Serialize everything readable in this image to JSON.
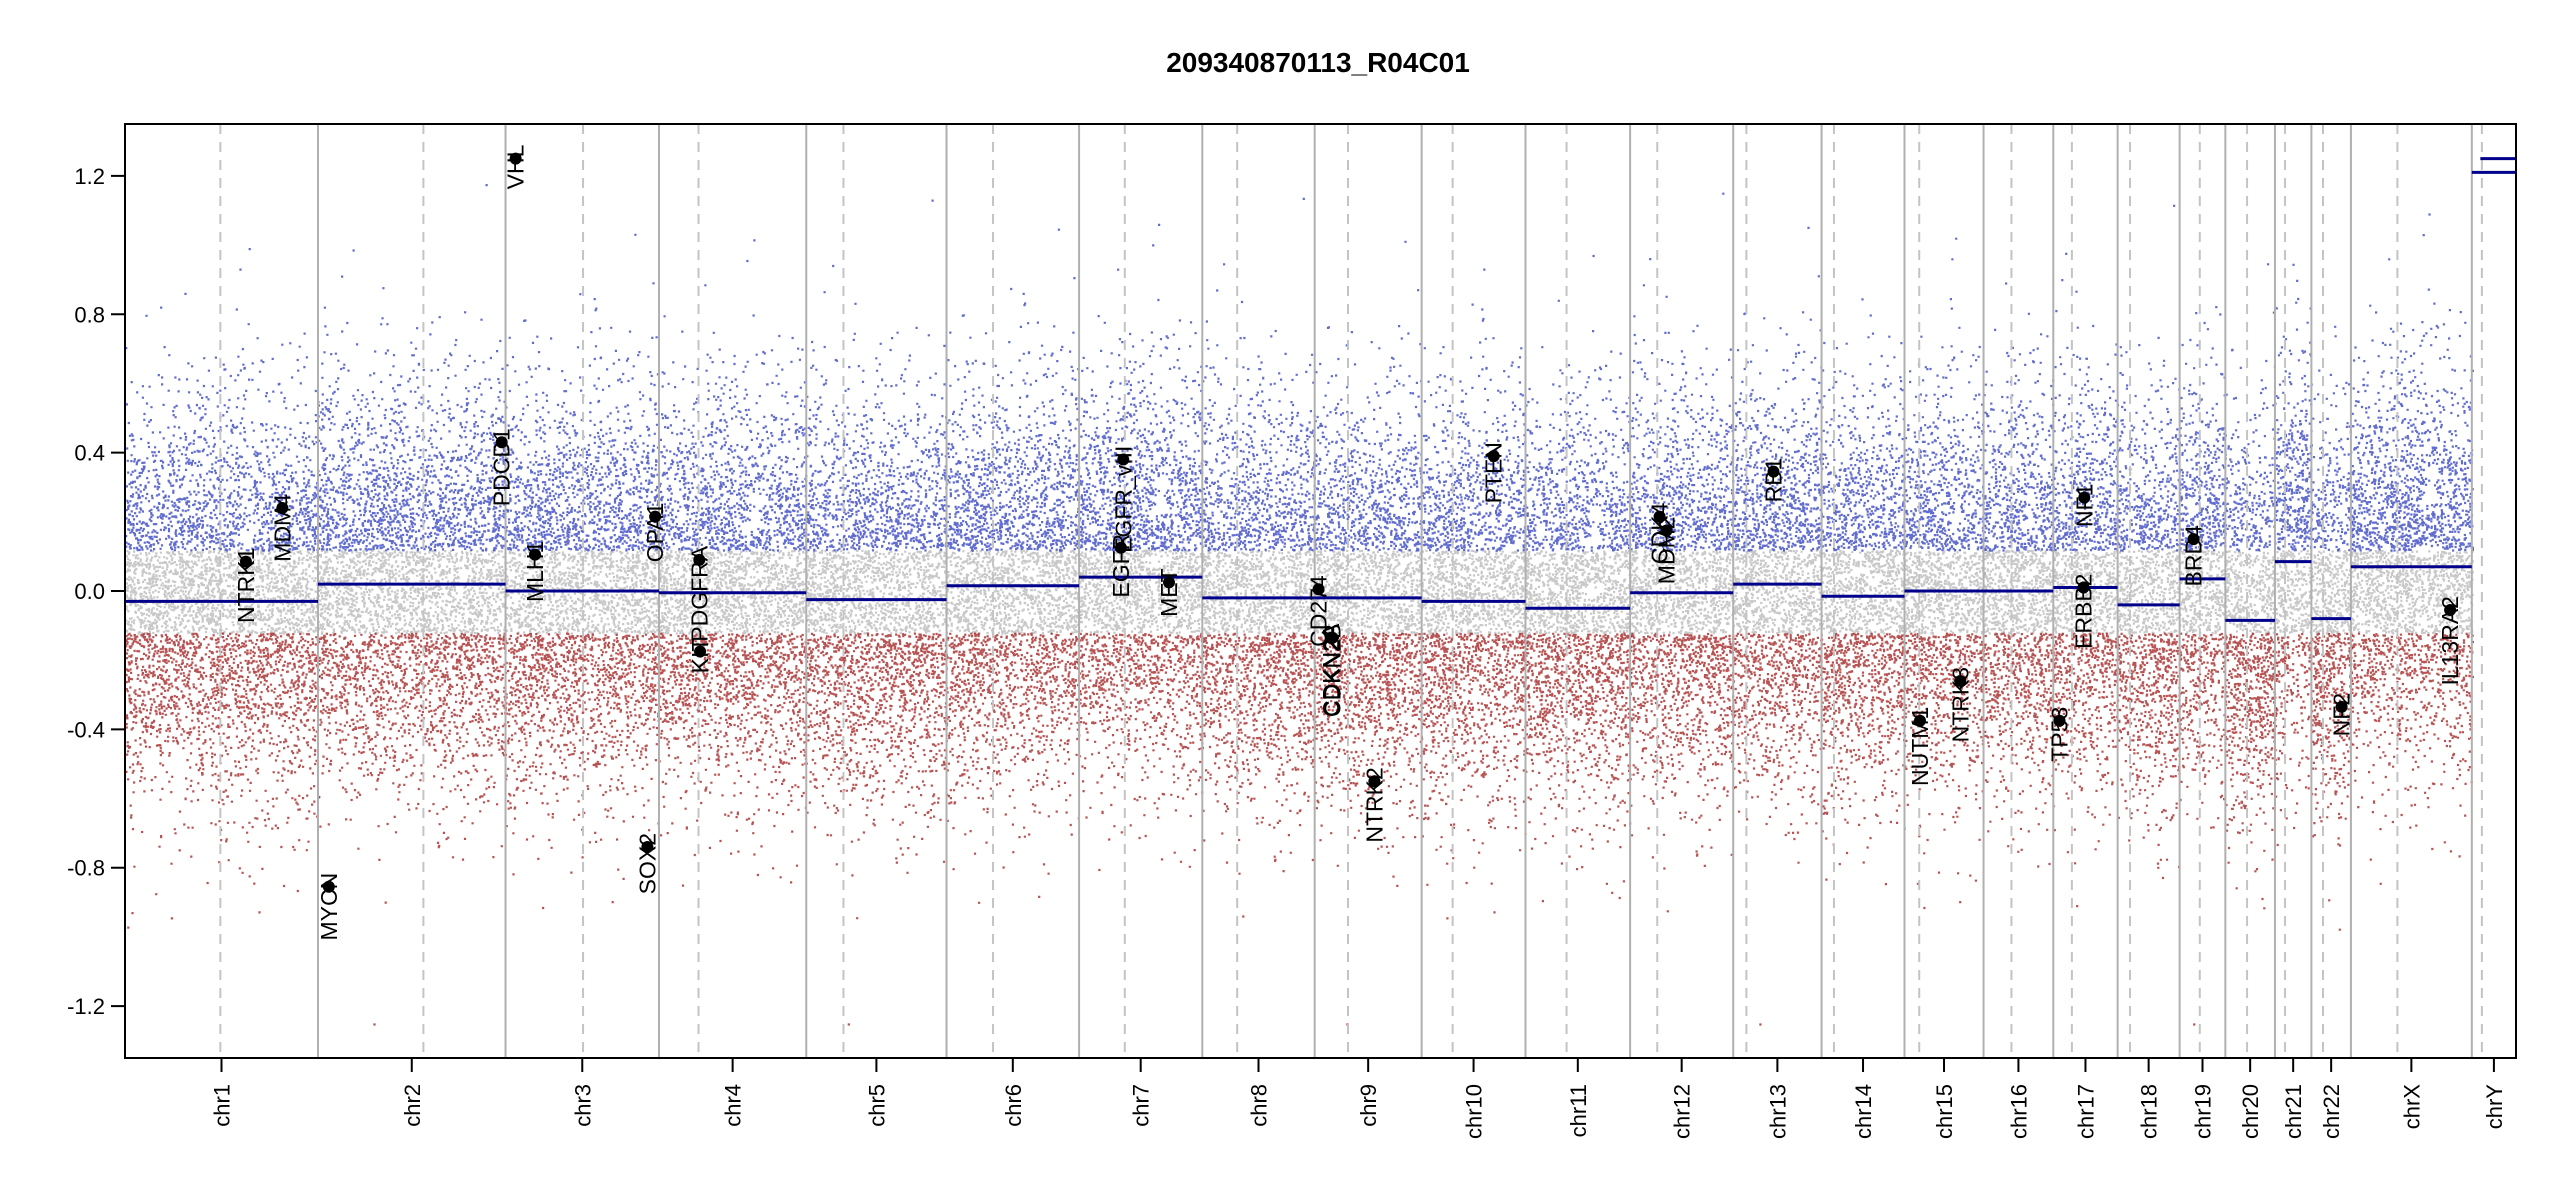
{
  "chart_data": {
    "type": "scatter",
    "title": "209340870113_R04C01",
    "ylim": [
      -1.35,
      1.35
    ],
    "yticks": [
      -1.2,
      -0.8,
      -0.4,
      0.0,
      0.4,
      0.8,
      1.2
    ],
    "ytick_labels": [
      "-1.2",
      "-0.8",
      "-0.4",
      "0.0",
      "0.4",
      "0.8",
      "1.2"
    ],
    "grid": false,
    "point_colors": {
      "gain": "#2b3bbd",
      "loss": "#a01a1a",
      "neutral": "#9a9a9a"
    },
    "segment_color": "#00008b",
    "chromosomes": [
      {
        "name": "chr1",
        "start": 0,
        "end": 2490,
        "centromere": 1230,
        "segment": -0.03
      },
      {
        "name": "chr2",
        "start": 2490,
        "end": 4910,
        "centromere": 3850,
        "segment": 0.02
      },
      {
        "name": "chr3",
        "start": 4910,
        "end": 6890,
        "centromere": 5910,
        "segment": 0.0
      },
      {
        "name": "chr4",
        "start": 6890,
        "end": 8790,
        "centromere": 7400,
        "segment": -0.005
      },
      {
        "name": "chr5",
        "start": 8790,
        "end": 10600,
        "centromere": 9270,
        "segment": -0.025
      },
      {
        "name": "chr6",
        "start": 10600,
        "end": 12310,
        "centromere": 11200,
        "segment": 0.015
      },
      {
        "name": "chr7",
        "start": 12310,
        "end": 13900,
        "centromere": 12900,
        "segment": 0.04
      },
      {
        "name": "chr8",
        "start": 13900,
        "end": 15350,
        "centromere": 14350,
        "segment": -0.02
      },
      {
        "name": "chr9",
        "start": 15350,
        "end": 16730,
        "centromere": 15780,
        "segment": -0.02
      },
      {
        "name": "chr10",
        "start": 16730,
        "end": 18070,
        "centromere": 17130,
        "segment": -0.03
      },
      {
        "name": "chr11",
        "start": 18070,
        "end": 19420,
        "centromere": 18600,
        "segment": -0.05
      },
      {
        "name": "chr12",
        "start": 19420,
        "end": 20750,
        "centromere": 19770,
        "segment": -0.005
      },
      {
        "name": "chr13",
        "start": 20750,
        "end": 21890,
        "centromere": 20920,
        "segment": 0.02
      },
      {
        "name": "chr14",
        "start": 21890,
        "end": 22960,
        "centromere": 22050,
        "segment": -0.015
      },
      {
        "name": "chr15",
        "start": 22960,
        "end": 23980,
        "centromere": 23150,
        "segment": 0.0
      },
      {
        "name": "chr16",
        "start": 23980,
        "end": 24880,
        "centromere": 24340,
        "segment": 0.0
      },
      {
        "name": "chr17",
        "start": 24880,
        "end": 25710,
        "centromere": 25120,
        "segment": 0.01
      },
      {
        "name": "chr18",
        "start": 25710,
        "end": 26510,
        "centromere": 25870,
        "segment": -0.04
      },
      {
        "name": "chr19",
        "start": 26510,
        "end": 27100,
        "centromere": 26770,
        "segment": 0.035
      },
      {
        "name": "chr20",
        "start": 27100,
        "end": 27740,
        "centromere": 27380,
        "segment": -0.085
      },
      {
        "name": "chr21",
        "start": 27740,
        "end": 28210,
        "centromere": 27870,
        "segment": 0.085
      },
      {
        "name": "chr22",
        "start": 28210,
        "end": 28720,
        "centromere": 28360,
        "segment": -0.08
      },
      {
        "name": "chrX",
        "start": 28720,
        "end": 30280,
        "centromere": 29320,
        "segment": 0.07
      },
      {
        "name": "chrY",
        "start": 30280,
        "end": 30850,
        "centromere": 30410,
        "segment": 1.21
      }
    ],
    "genes": [
      {
        "name": "NTRK1",
        "x": 1560,
        "y": 0.085
      },
      {
        "name": "MDM4",
        "x": 2030,
        "y": 0.24
      },
      {
        "name": "MYCN",
        "x": 2630,
        "y": -0.855
      },
      {
        "name": "PDCD1",
        "x": 4860,
        "y": 0.43
      },
      {
        "name": "VHL",
        "x": 5040,
        "y": 1.25
      },
      {
        "name": "MLH1",
        "x": 5290,
        "y": 0.105
      },
      {
        "name": "SOX2",
        "x": 6740,
        "y": -0.74
      },
      {
        "name": "OPA1",
        "x": 6840,
        "y": 0.215
      },
      {
        "name": "PDGFRA",
        "x": 7410,
        "y": 0.09
      },
      {
        "name": "KIT",
        "x": 7420,
        "y": -0.175
      },
      {
        "name": "EGFR",
        "x": 12850,
        "y": 0.125
      },
      {
        "name": "EGFR_vIII",
        "x": 12880,
        "y": 0.38
      },
      {
        "name": "MET",
        "x": 13470,
        "y": 0.025
      },
      {
        "name": "CD274",
        "x": 15400,
        "y": 0.005
      },
      {
        "name": "CDKN2A",
        "x": 15560,
        "y": -0.135
      },
      {
        "name": "CDKN2B",
        "x": 15580,
        "y": -0.135
      },
      {
        "name": "NTRK2",
        "x": 16120,
        "y": -0.55
      },
      {
        "name": "PTEN",
        "x": 17660,
        "y": 0.39
      },
      {
        "name": "CDK4",
        "x": 19800,
        "y": 0.215
      },
      {
        "name": "MDM2",
        "x": 19890,
        "y": 0.175
      },
      {
        "name": "RB1",
        "x": 21270,
        "y": 0.345
      },
      {
        "name": "NUTM1",
        "x": 23160,
        "y": -0.375
      },
      {
        "name": "NTRK3",
        "x": 23680,
        "y": -0.26
      },
      {
        "name": "TP53",
        "x": 24960,
        "y": -0.375
      },
      {
        "name": "ERBB2",
        "x": 25270,
        "y": 0.01
      },
      {
        "name": "NF1",
        "x": 25280,
        "y": 0.27
      },
      {
        "name": "BRD4",
        "x": 26690,
        "y": 0.15
      },
      {
        "name": "NF2",
        "x": 28600,
        "y": -0.335
      },
      {
        "name": "IL13RA2",
        "x": 30000,
        "y": -0.055
      }
    ]
  }
}
